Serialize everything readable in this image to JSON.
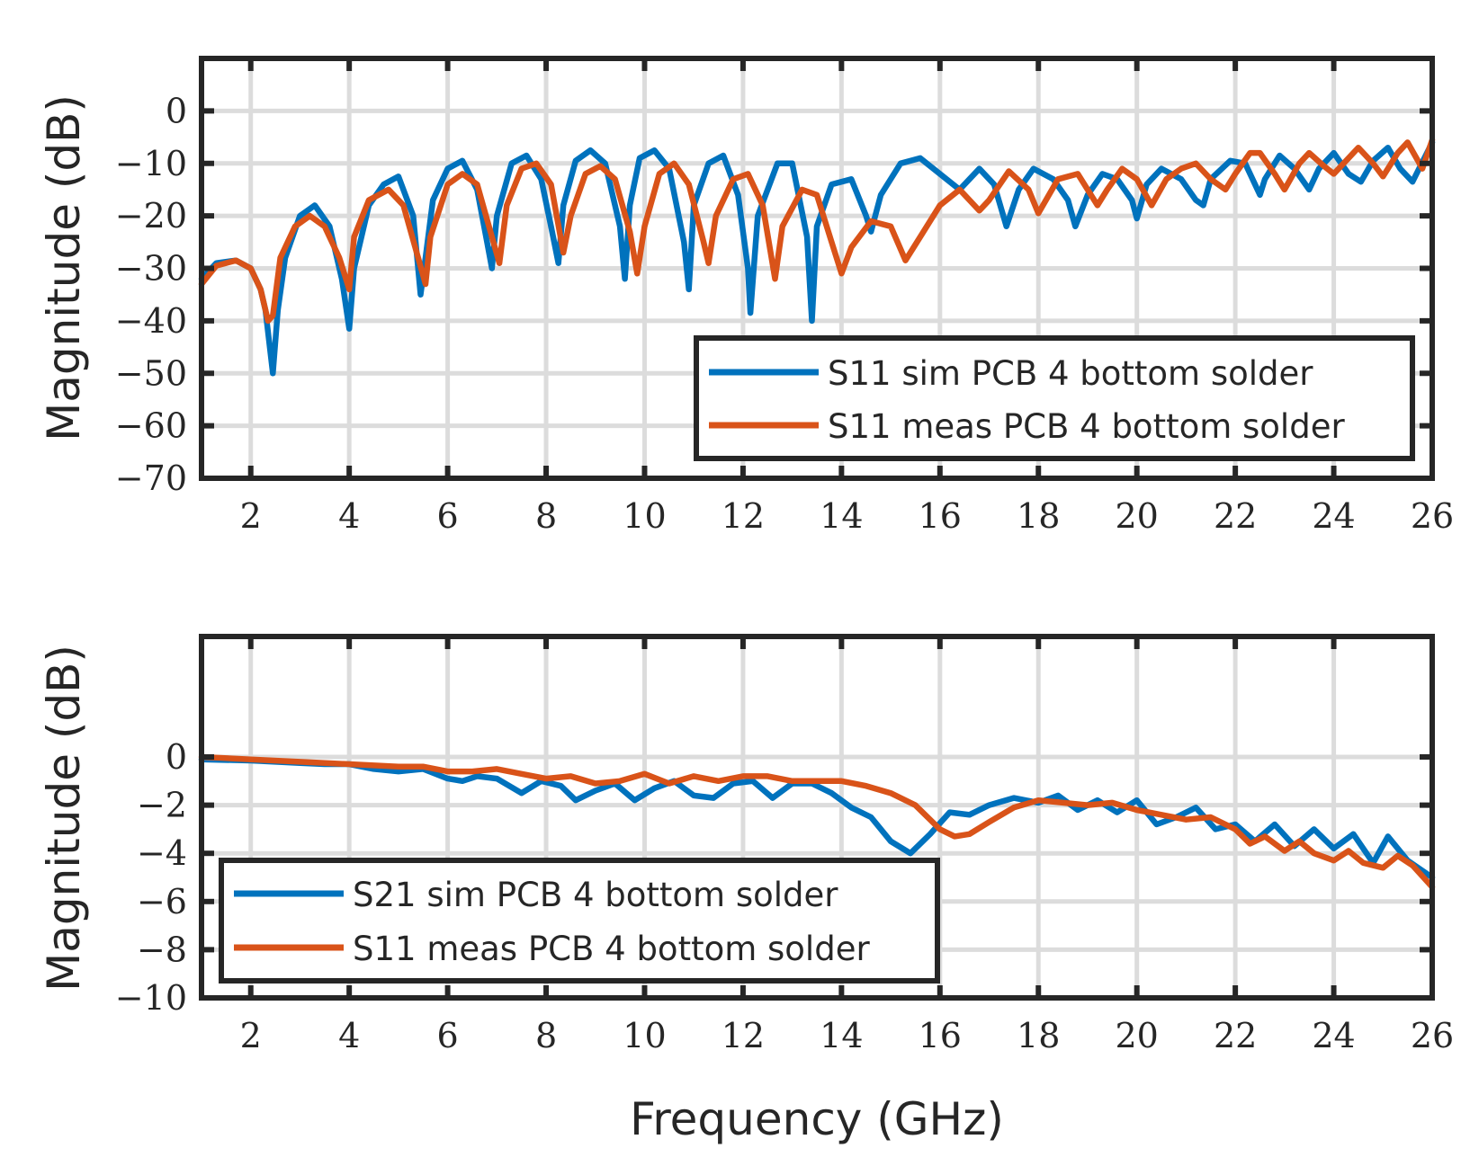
{
  "colors": {
    "blue": "#0072BD",
    "orange": "#D95319"
  },
  "xlabel": "Frequency (GHz)",
  "chart_data": [
    {
      "type": "line",
      "ylabel": "Magnitude (dB)",
      "xlim": [
        1,
        26
      ],
      "ylim": [
        -70,
        10
      ],
      "xticks": [
        2,
        4,
        6,
        8,
        10,
        12,
        14,
        16,
        18,
        20,
        22,
        24,
        26
      ],
      "yticks": [
        0,
        -10,
        -20,
        -30,
        -40,
        -50,
        -60,
        -70
      ],
      "ytick_labels": [
        "0",
        "−10",
        "−20",
        "−30",
        "−40",
        "−50",
        "−60",
        "−70"
      ],
      "grid": true,
      "legend_position": "bottom-right",
      "series": [
        {
          "name": "S11 sim PCB 4 bottom solder",
          "color": "#0072BD",
          "x": [
            1,
            1.3,
            1.7,
            2.0,
            2.2,
            2.3,
            2.45,
            2.55,
            2.7,
            3.0,
            3.3,
            3.6,
            3.85,
            4.0,
            4.1,
            4.4,
            4.7,
            5.0,
            5.3,
            5.45,
            5.55,
            5.7,
            6.0,
            6.3,
            6.6,
            6.8,
            6.9,
            7.0,
            7.3,
            7.6,
            7.9,
            8.1,
            8.25,
            8.35,
            8.6,
            8.9,
            9.2,
            9.5,
            9.6,
            9.7,
            9.9,
            10.2,
            10.5,
            10.8,
            10.9,
            11.0,
            11.3,
            11.6,
            11.9,
            12.1,
            12.15,
            12.3,
            12.7,
            13.0,
            13.3,
            13.4,
            13.5,
            13.8,
            14.2,
            14.5,
            14.6,
            14.8,
            15.2,
            15.6,
            16.0,
            16.4,
            16.8,
            17.1,
            17.35,
            17.6,
            17.9,
            18.3,
            18.6,
            18.75,
            19.0,
            19.3,
            19.6,
            19.9,
            20.0,
            20.2,
            20.5,
            20.9,
            21.2,
            21.35,
            21.5,
            21.9,
            22.2,
            22.5,
            22.6,
            22.9,
            23.2,
            23.5,
            23.7,
            24.0,
            24.3,
            24.55,
            24.8,
            25.1,
            25.35,
            25.6,
            26.0
          ],
          "y": [
            -32,
            -29,
            -28.5,
            -30,
            -34,
            -38,
            -50,
            -38,
            -28,
            -20,
            -18,
            -22,
            -32,
            -41.5,
            -30,
            -18,
            -14,
            -12.5,
            -20,
            -35,
            -28,
            -17,
            -11,
            -9.5,
            -15,
            -25,
            -30,
            -20,
            -10,
            -8.5,
            -13,
            -22,
            -29,
            -18,
            -9.5,
            -7.5,
            -10,
            -22,
            -32,
            -18,
            -9,
            -7.5,
            -11,
            -25,
            -34,
            -18,
            -10,
            -8.5,
            -16,
            -30,
            -38.5,
            -20,
            -10,
            -10,
            -24,
            -40,
            -22,
            -14,
            -13,
            -20,
            -23,
            -16,
            -10,
            -9,
            -12,
            -15,
            -11,
            -14,
            -22,
            -15,
            -11,
            -13,
            -17,
            -22,
            -16,
            -12,
            -13,
            -17,
            -20.5,
            -14,
            -11,
            -13,
            -17,
            -18,
            -13,
            -9.5,
            -10,
            -16,
            -13,
            -8.5,
            -11,
            -15,
            -11,
            -8,
            -12,
            -13.5,
            -9.5,
            -7,
            -11,
            -13.5,
            -6
          ]
        },
        {
          "name": "S11 meas PCB 4 bottom solder",
          "color": "#D95319",
          "x": [
            1,
            1.3,
            1.7,
            2.0,
            2.2,
            2.35,
            2.45,
            2.6,
            2.9,
            3.2,
            3.5,
            3.8,
            4.0,
            4.1,
            4.4,
            4.8,
            5.1,
            5.4,
            5.55,
            5.65,
            6.0,
            6.3,
            6.6,
            6.9,
            7.05,
            7.2,
            7.5,
            7.8,
            8.1,
            8.35,
            8.5,
            8.8,
            9.1,
            9.4,
            9.7,
            9.85,
            10.0,
            10.3,
            10.6,
            10.9,
            11.2,
            11.3,
            11.45,
            11.8,
            12.1,
            12.4,
            12.65,
            12.8,
            13.2,
            13.5,
            13.8,
            14.0,
            14.2,
            14.6,
            15.0,
            15.3,
            15.6,
            16.0,
            16.4,
            16.8,
            17.0,
            17.4,
            17.8,
            18.0,
            18.4,
            18.8,
            19.2,
            19.4,
            19.7,
            20.0,
            20.3,
            20.6,
            20.9,
            21.2,
            21.5,
            21.8,
            22.0,
            22.3,
            22.5,
            22.8,
            23.0,
            23.3,
            23.5,
            23.8,
            24.0,
            24.3,
            24.5,
            24.8,
            25.0,
            25.3,
            25.5,
            25.8,
            26.0
          ],
          "y": [
            -33,
            -29.5,
            -28.5,
            -30,
            -34,
            -40,
            -39,
            -28,
            -22,
            -20,
            -22,
            -28,
            -34,
            -24,
            -17,
            -15,
            -18,
            -28,
            -33,
            -24,
            -14,
            -12,
            -14,
            -24,
            -29,
            -18,
            -11,
            -10,
            -14,
            -27,
            -20,
            -12,
            -10.5,
            -13,
            -23,
            -31,
            -22,
            -12,
            -10,
            -14,
            -25,
            -29,
            -20,
            -13,
            -12,
            -18,
            -32,
            -22,
            -15,
            -16,
            -25,
            -31,
            -26,
            -21,
            -22,
            -28.5,
            -24,
            -18,
            -15,
            -19,
            -17,
            -11.5,
            -15,
            -19.5,
            -13,
            -12,
            -18,
            -15,
            -11,
            -13,
            -18,
            -13,
            -11,
            -10,
            -13,
            -15,
            -12,
            -8,
            -8,
            -12,
            -15,
            -10,
            -8,
            -10.5,
            -12,
            -9,
            -7,
            -10,
            -12.5,
            -8,
            -6,
            -11,
            -5.5
          ]
        }
      ]
    },
    {
      "type": "line",
      "ylabel": "Magnitude (dB)",
      "xlabel": "Frequency (GHz)",
      "xlim": [
        1,
        26
      ],
      "ylim": [
        -10,
        5
      ],
      "xticks": [
        2,
        4,
        6,
        8,
        10,
        12,
        14,
        16,
        18,
        20,
        22,
        24,
        26
      ],
      "yticks": [
        0,
        -2,
        -4,
        -6,
        -8,
        -10
      ],
      "ytick_labels": [
        "0",
        "−2",
        "−4",
        "−6",
        "−8",
        "−10"
      ],
      "grid": true,
      "legend_position": "bottom-left",
      "series": [
        {
          "name": "S21 sim PCB 4 bottom solder",
          "color": "#0072BD",
          "x": [
            1,
            2,
            3,
            3.5,
            4,
            4.5,
            5,
            5.5,
            6,
            6.3,
            6.6,
            7,
            7.5,
            7.9,
            8.3,
            8.6,
            9.0,
            9.4,
            9.8,
            10.2,
            10.6,
            11.0,
            11.4,
            11.8,
            12.2,
            12.6,
            13.0,
            13.4,
            13.8,
            14.2,
            14.6,
            15.0,
            15.4,
            15.8,
            16.2,
            16.6,
            17.0,
            17.5,
            18.0,
            18.4,
            18.8,
            19.2,
            19.6,
            20.0,
            20.4,
            20.8,
            21.2,
            21.6,
            22.0,
            22.4,
            22.8,
            23.2,
            23.6,
            24.0,
            24.4,
            24.8,
            25.1,
            25.5,
            26.0
          ],
          "y": [
            -0.1,
            -0.15,
            -0.25,
            -0.3,
            -0.3,
            -0.5,
            -0.6,
            -0.5,
            -0.9,
            -1.0,
            -0.8,
            -0.9,
            -1.5,
            -1.0,
            -1.2,
            -1.8,
            -1.4,
            -1.1,
            -1.8,
            -1.3,
            -1.0,
            -1.6,
            -1.7,
            -1.1,
            -1.0,
            -1.7,
            -1.1,
            -1.1,
            -1.5,
            -2.1,
            -2.5,
            -3.5,
            -4.0,
            -3.2,
            -2.3,
            -2.4,
            -2.0,
            -1.7,
            -1.9,
            -1.6,
            -2.2,
            -1.8,
            -2.3,
            -1.8,
            -2.8,
            -2.5,
            -2.1,
            -3.0,
            -2.8,
            -3.5,
            -2.8,
            -3.7,
            -3.0,
            -3.8,
            -3.2,
            -4.4,
            -3.3,
            -4.3,
            -5.0
          ]
        },
        {
          "name": "S11 meas PCB 4 bottom solder",
          "color": "#D95319",
          "x": [
            1,
            2,
            3,
            4,
            5,
            5.5,
            6,
            6.5,
            7,
            7.5,
            8,
            8.5,
            9,
            9.5,
            10,
            10.5,
            11,
            11.5,
            12,
            12.5,
            13,
            13.5,
            14,
            14.5,
            15,
            15.5,
            16,
            16.3,
            16.6,
            17.0,
            17.5,
            18.0,
            18.5,
            19.0,
            19.5,
            20.0,
            20.5,
            21.0,
            21.5,
            22.0,
            22.3,
            22.6,
            23.0,
            23.3,
            23.6,
            24.0,
            24.3,
            24.6,
            25.0,
            25.3,
            25.6,
            26.0
          ],
          "y": [
            0,
            -0.1,
            -0.2,
            -0.3,
            -0.4,
            -0.4,
            -0.6,
            -0.6,
            -0.5,
            -0.7,
            -0.9,
            -0.8,
            -1.1,
            -1.0,
            -0.7,
            -1.1,
            -0.8,
            -1.0,
            -0.8,
            -0.8,
            -1.0,
            -1.0,
            -1.0,
            -1.2,
            -1.5,
            -2.0,
            -3.0,
            -3.3,
            -3.2,
            -2.7,
            -2.1,
            -1.8,
            -1.9,
            -2.0,
            -1.9,
            -2.2,
            -2.4,
            -2.6,
            -2.5,
            -3.0,
            -3.6,
            -3.3,
            -3.9,
            -3.5,
            -4.0,
            -4.3,
            -3.9,
            -4.4,
            -4.6,
            -4.1,
            -4.5,
            -5.4
          ]
        }
      ]
    }
  ]
}
